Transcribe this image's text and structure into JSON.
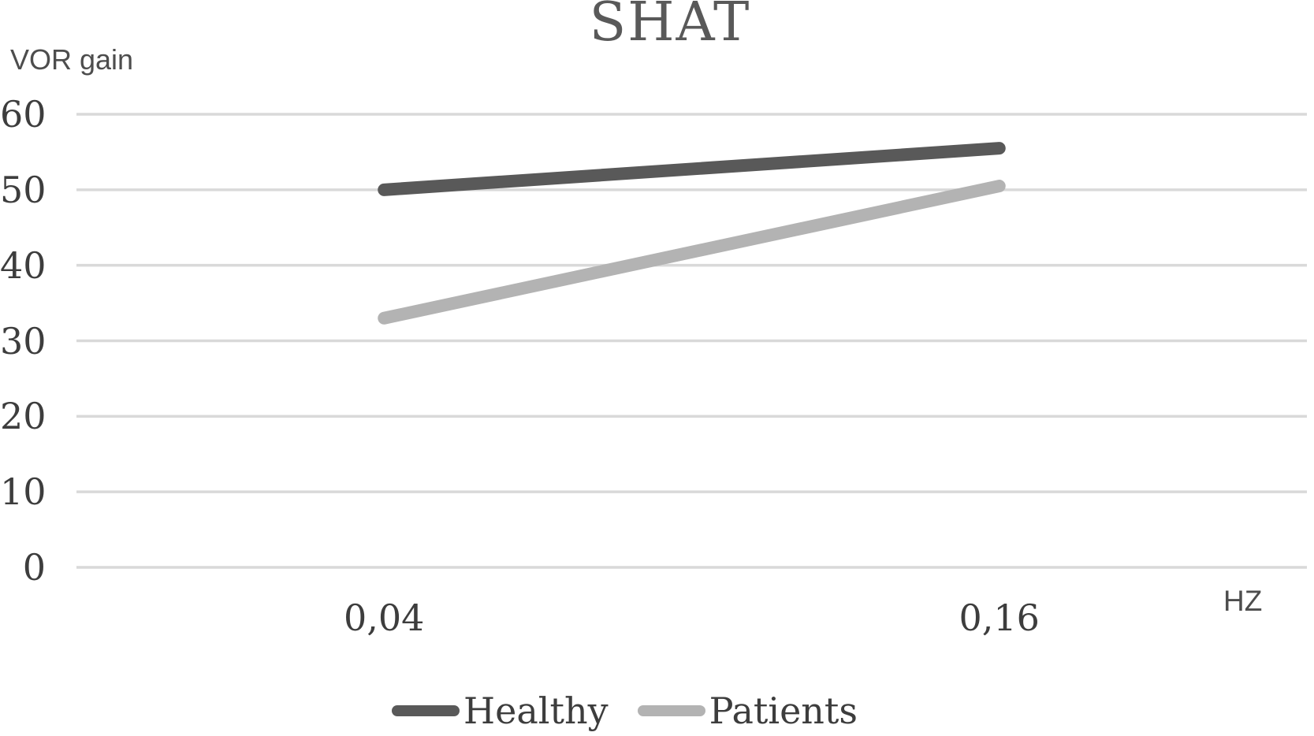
{
  "chart_data": {
    "type": "line",
    "title": "SHAT",
    "ylabel": "VOR gain",
    "xlabel": "HZ",
    "categories": [
      "0,04",
      "0,16"
    ],
    "series": [
      {
        "name": "Healthy",
        "color": "#595959",
        "values": [
          50,
          55.5
        ]
      },
      {
        "name": "Patients",
        "color": "#b3b3b3",
        "values": [
          33,
          50.5
        ]
      }
    ],
    "yticks": [
      60,
      50,
      40,
      30,
      20,
      10,
      0
    ],
    "ylim": [
      0,
      60
    ],
    "grid": "horizontal",
    "gridline_color": "#d9d9d9",
    "legend_position": "bottom"
  }
}
